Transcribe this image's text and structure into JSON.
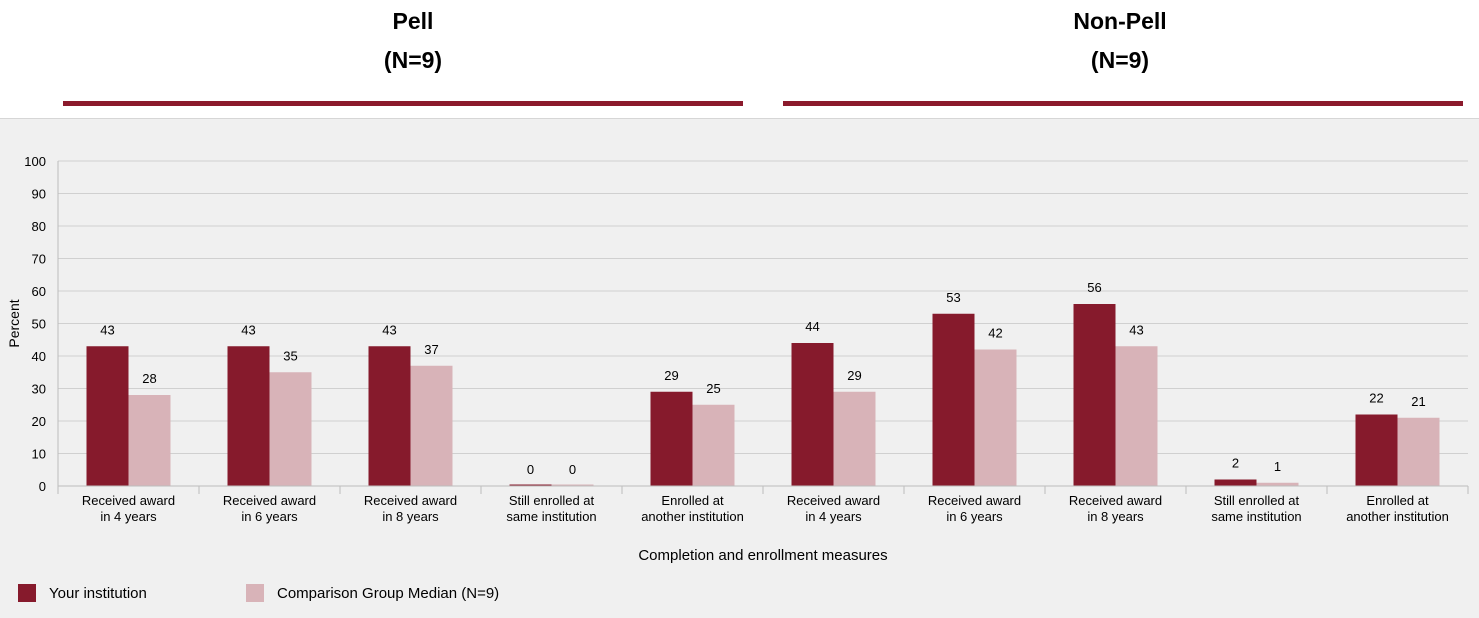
{
  "groups": [
    {
      "name": "Pell",
      "n_label": "(N=9)"
    },
    {
      "name": "Non-Pell",
      "n_label": "(N=9)"
    }
  ],
  "colors": {
    "your_institution": "#861a2c",
    "comparison": "#d8b3b8",
    "group_rule": "#8b1a2c",
    "gridline": "#d0d0d0",
    "panel_bg": "#f0f0f0"
  },
  "legend": {
    "your_institution": "Your institution",
    "comparison": "Comparison Group Median (N=9)"
  },
  "chart_data": {
    "type": "bar",
    "title": "",
    "xlabel": "Completion and enrollment measures",
    "ylabel": "Percent",
    "ylim": [
      0,
      100
    ],
    "yticks": [
      0,
      10,
      20,
      30,
      40,
      50,
      60,
      70,
      80,
      90,
      100
    ],
    "grid": true,
    "legend_position": "bottom-left",
    "categories": [
      [
        "Received award",
        "in 4 years"
      ],
      [
        "Received award",
        "in 6 years"
      ],
      [
        "Received award",
        "in 8 years"
      ],
      [
        "Still enrolled at",
        "same institution"
      ],
      [
        "Enrolled at",
        "another institution"
      ],
      [
        "Received award",
        "in 4 years"
      ],
      [
        "Received award",
        "in 6 years"
      ],
      [
        "Received award",
        "in 8 years"
      ],
      [
        "Still enrolled at",
        "same institution"
      ],
      [
        "Enrolled at",
        "another institution"
      ]
    ],
    "category_group": [
      "Pell",
      "Pell",
      "Pell",
      "Pell",
      "Pell",
      "Non-Pell",
      "Non-Pell",
      "Non-Pell",
      "Non-Pell",
      "Non-Pell"
    ],
    "series": [
      {
        "name": "Your institution",
        "values": [
          43,
          43,
          43,
          0,
          29,
          44,
          53,
          56,
          2,
          22
        ]
      },
      {
        "name": "Comparison Group Median (N=9)",
        "values": [
          28,
          35,
          37,
          0,
          25,
          29,
          42,
          43,
          1,
          21
        ]
      }
    ]
  }
}
